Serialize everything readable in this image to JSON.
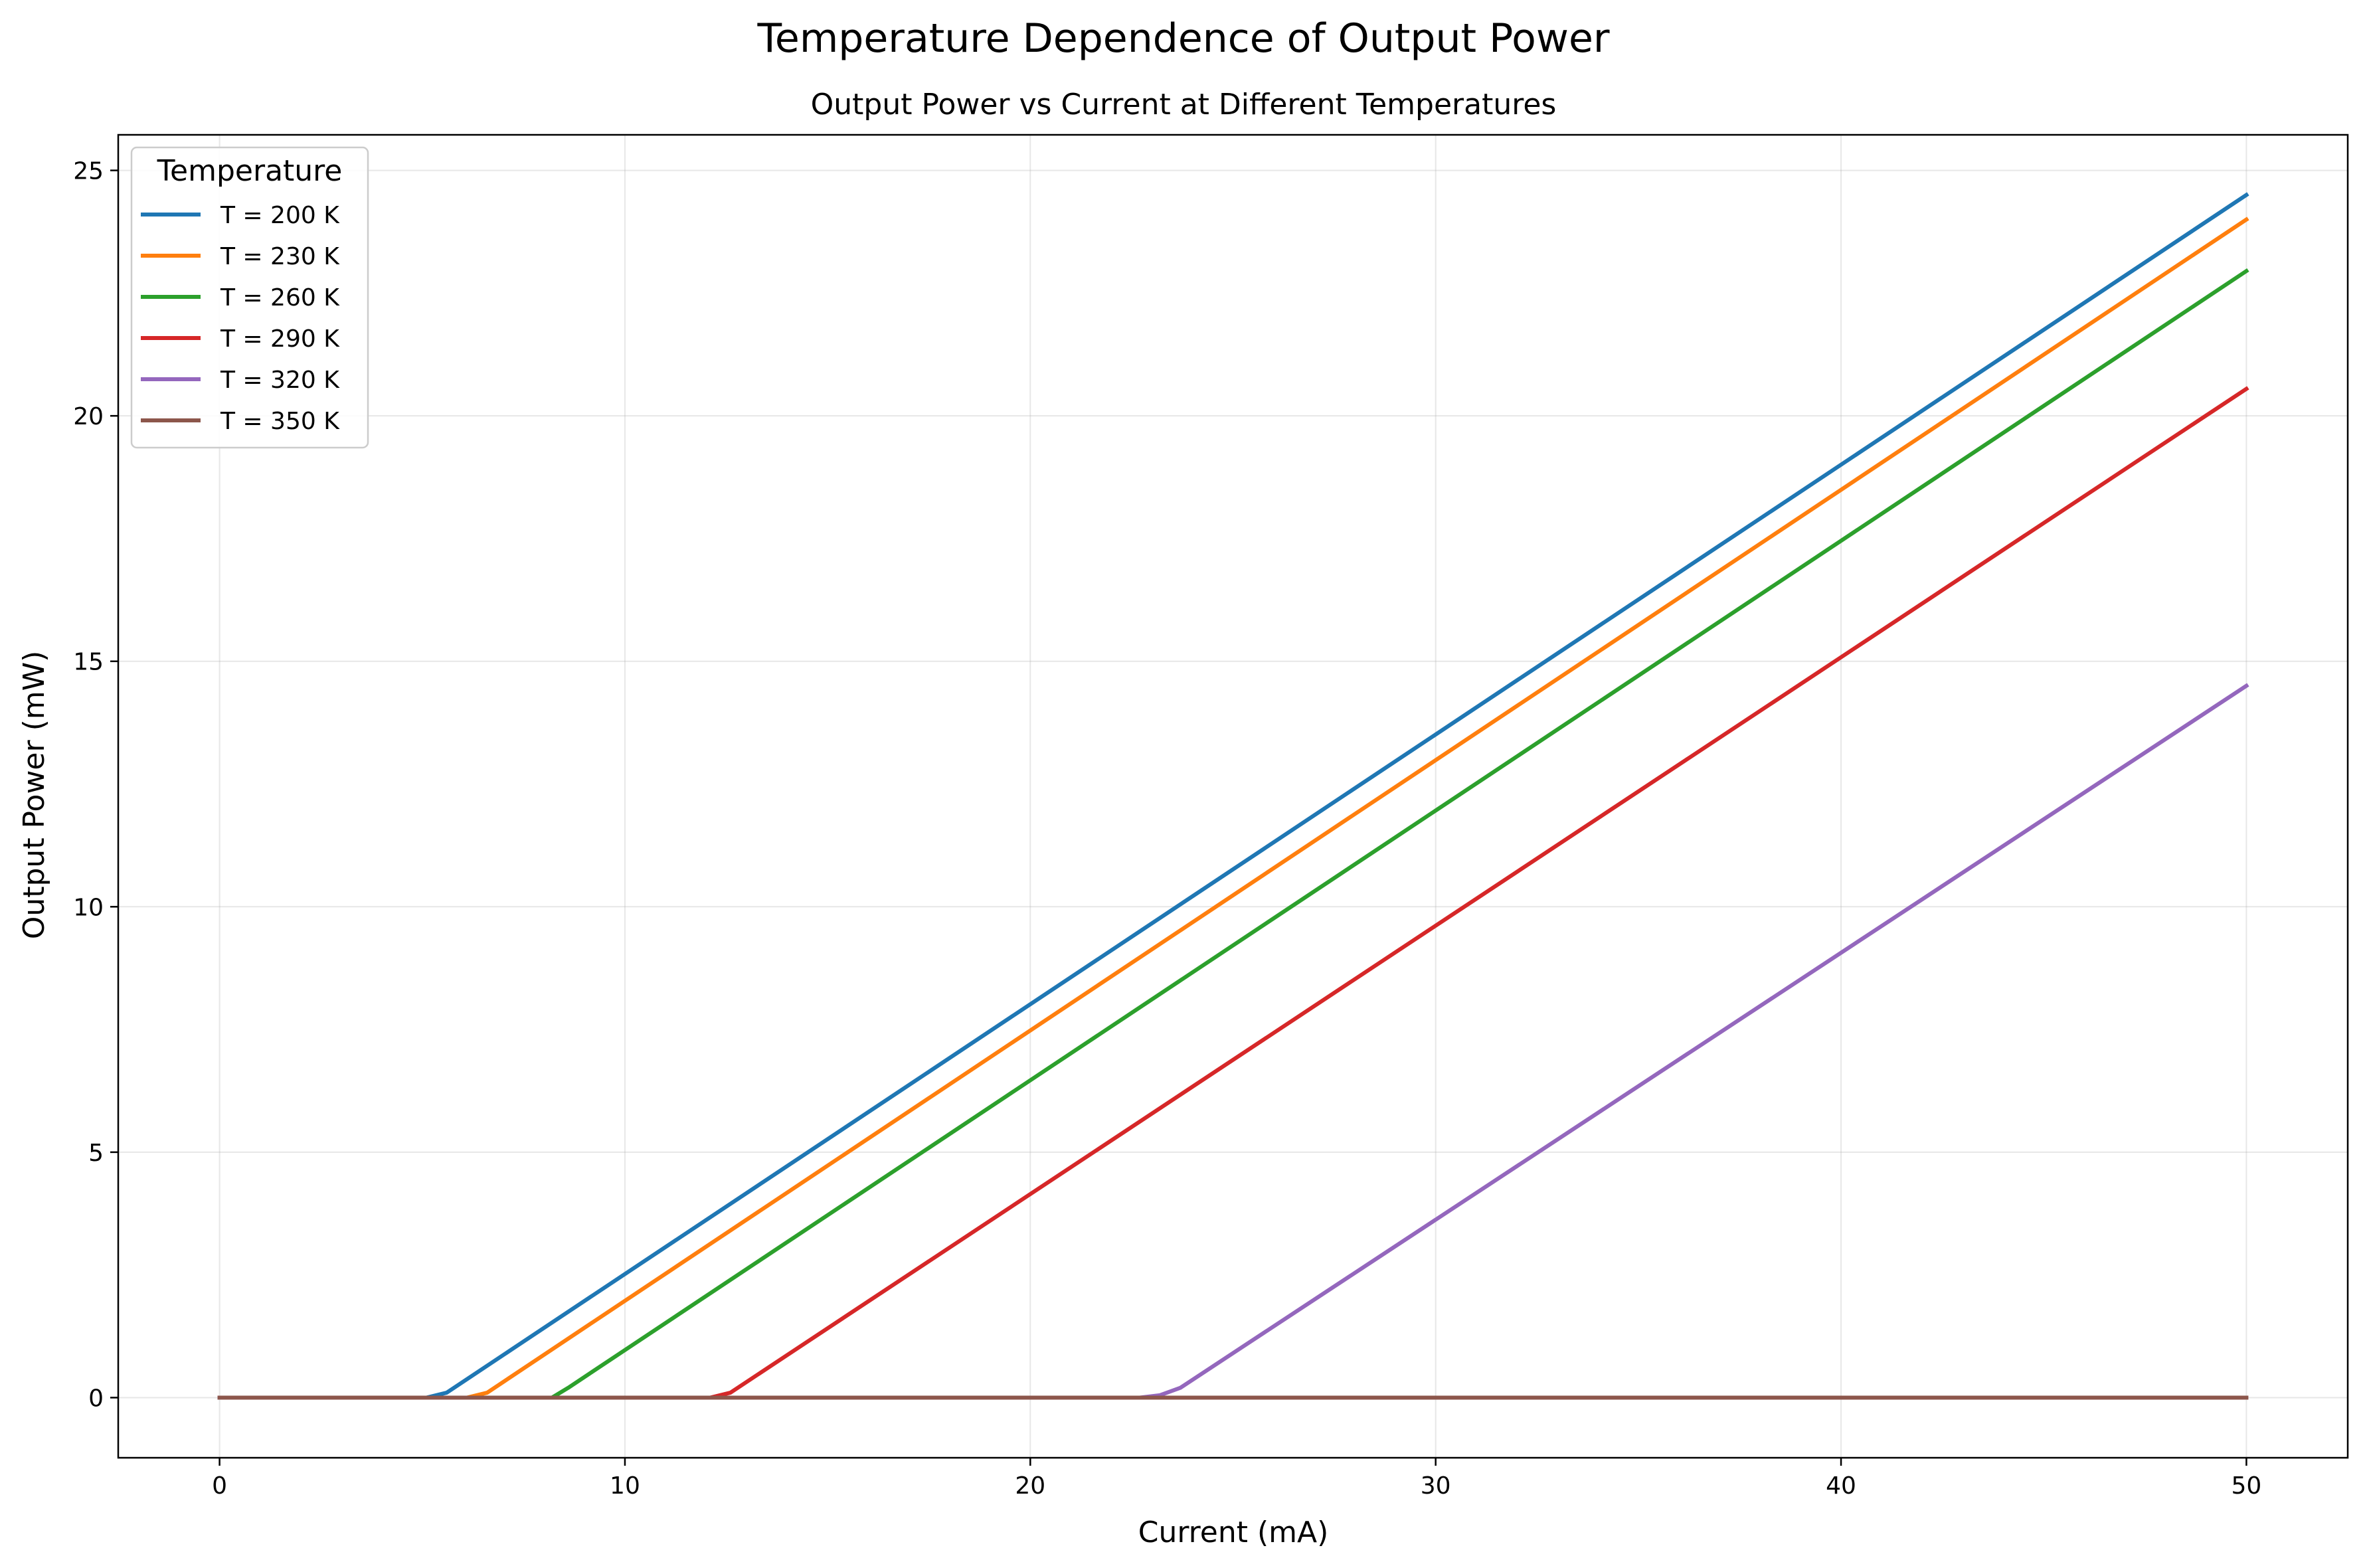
{
  "figure": {
    "suptitle": "Temperature Dependence of Output Power"
  },
  "chart_data": {
    "type": "line",
    "title": "Output Power vs Current at Different Temperatures",
    "xlabel": "Current (mA)",
    "ylabel": "Output Power (mW)",
    "xlim": [
      -2.5,
      52.5
    ],
    "ylim": [
      -1.225,
      25.725
    ],
    "xticks": [
      0,
      10,
      20,
      30,
      40,
      50
    ],
    "yticks": [
      0,
      5,
      10,
      15,
      20,
      25
    ],
    "grid": true,
    "legend": {
      "title": "Temperature",
      "placement": "top-left"
    },
    "series": [
      {
        "name": "T = 200 K",
        "color": "#1f77b4",
        "x": [
          0,
          5.1,
          5.6,
          50
        ],
        "y": [
          0,
          0,
          0.1,
          24.5
        ]
      },
      {
        "name": "T = 230 K",
        "color": "#ff7f0e",
        "x": [
          0,
          6.1,
          6.6,
          50
        ],
        "y": [
          0,
          0,
          0.1,
          24.0
        ]
      },
      {
        "name": "T = 260 K",
        "color": "#2ca02c",
        "x": [
          0,
          8.2,
          8.6,
          50
        ],
        "y": [
          0,
          0,
          0.2,
          22.95
        ]
      },
      {
        "name": "T = 290 K",
        "color": "#d62728",
        "x": [
          0,
          12.1,
          12.6,
          50
        ],
        "y": [
          0,
          0,
          0.1,
          20.55
        ]
      },
      {
        "name": "T = 320 K",
        "color": "#9467bd",
        "x": [
          0,
          22.7,
          23.2,
          23.7,
          50
        ],
        "y": [
          0,
          0,
          0.05,
          0.2,
          14.5
        ]
      },
      {
        "name": "T = 350 K",
        "color": "#8c564b",
        "x": [
          0,
          50
        ],
        "y": [
          0,
          0
        ]
      }
    ]
  }
}
